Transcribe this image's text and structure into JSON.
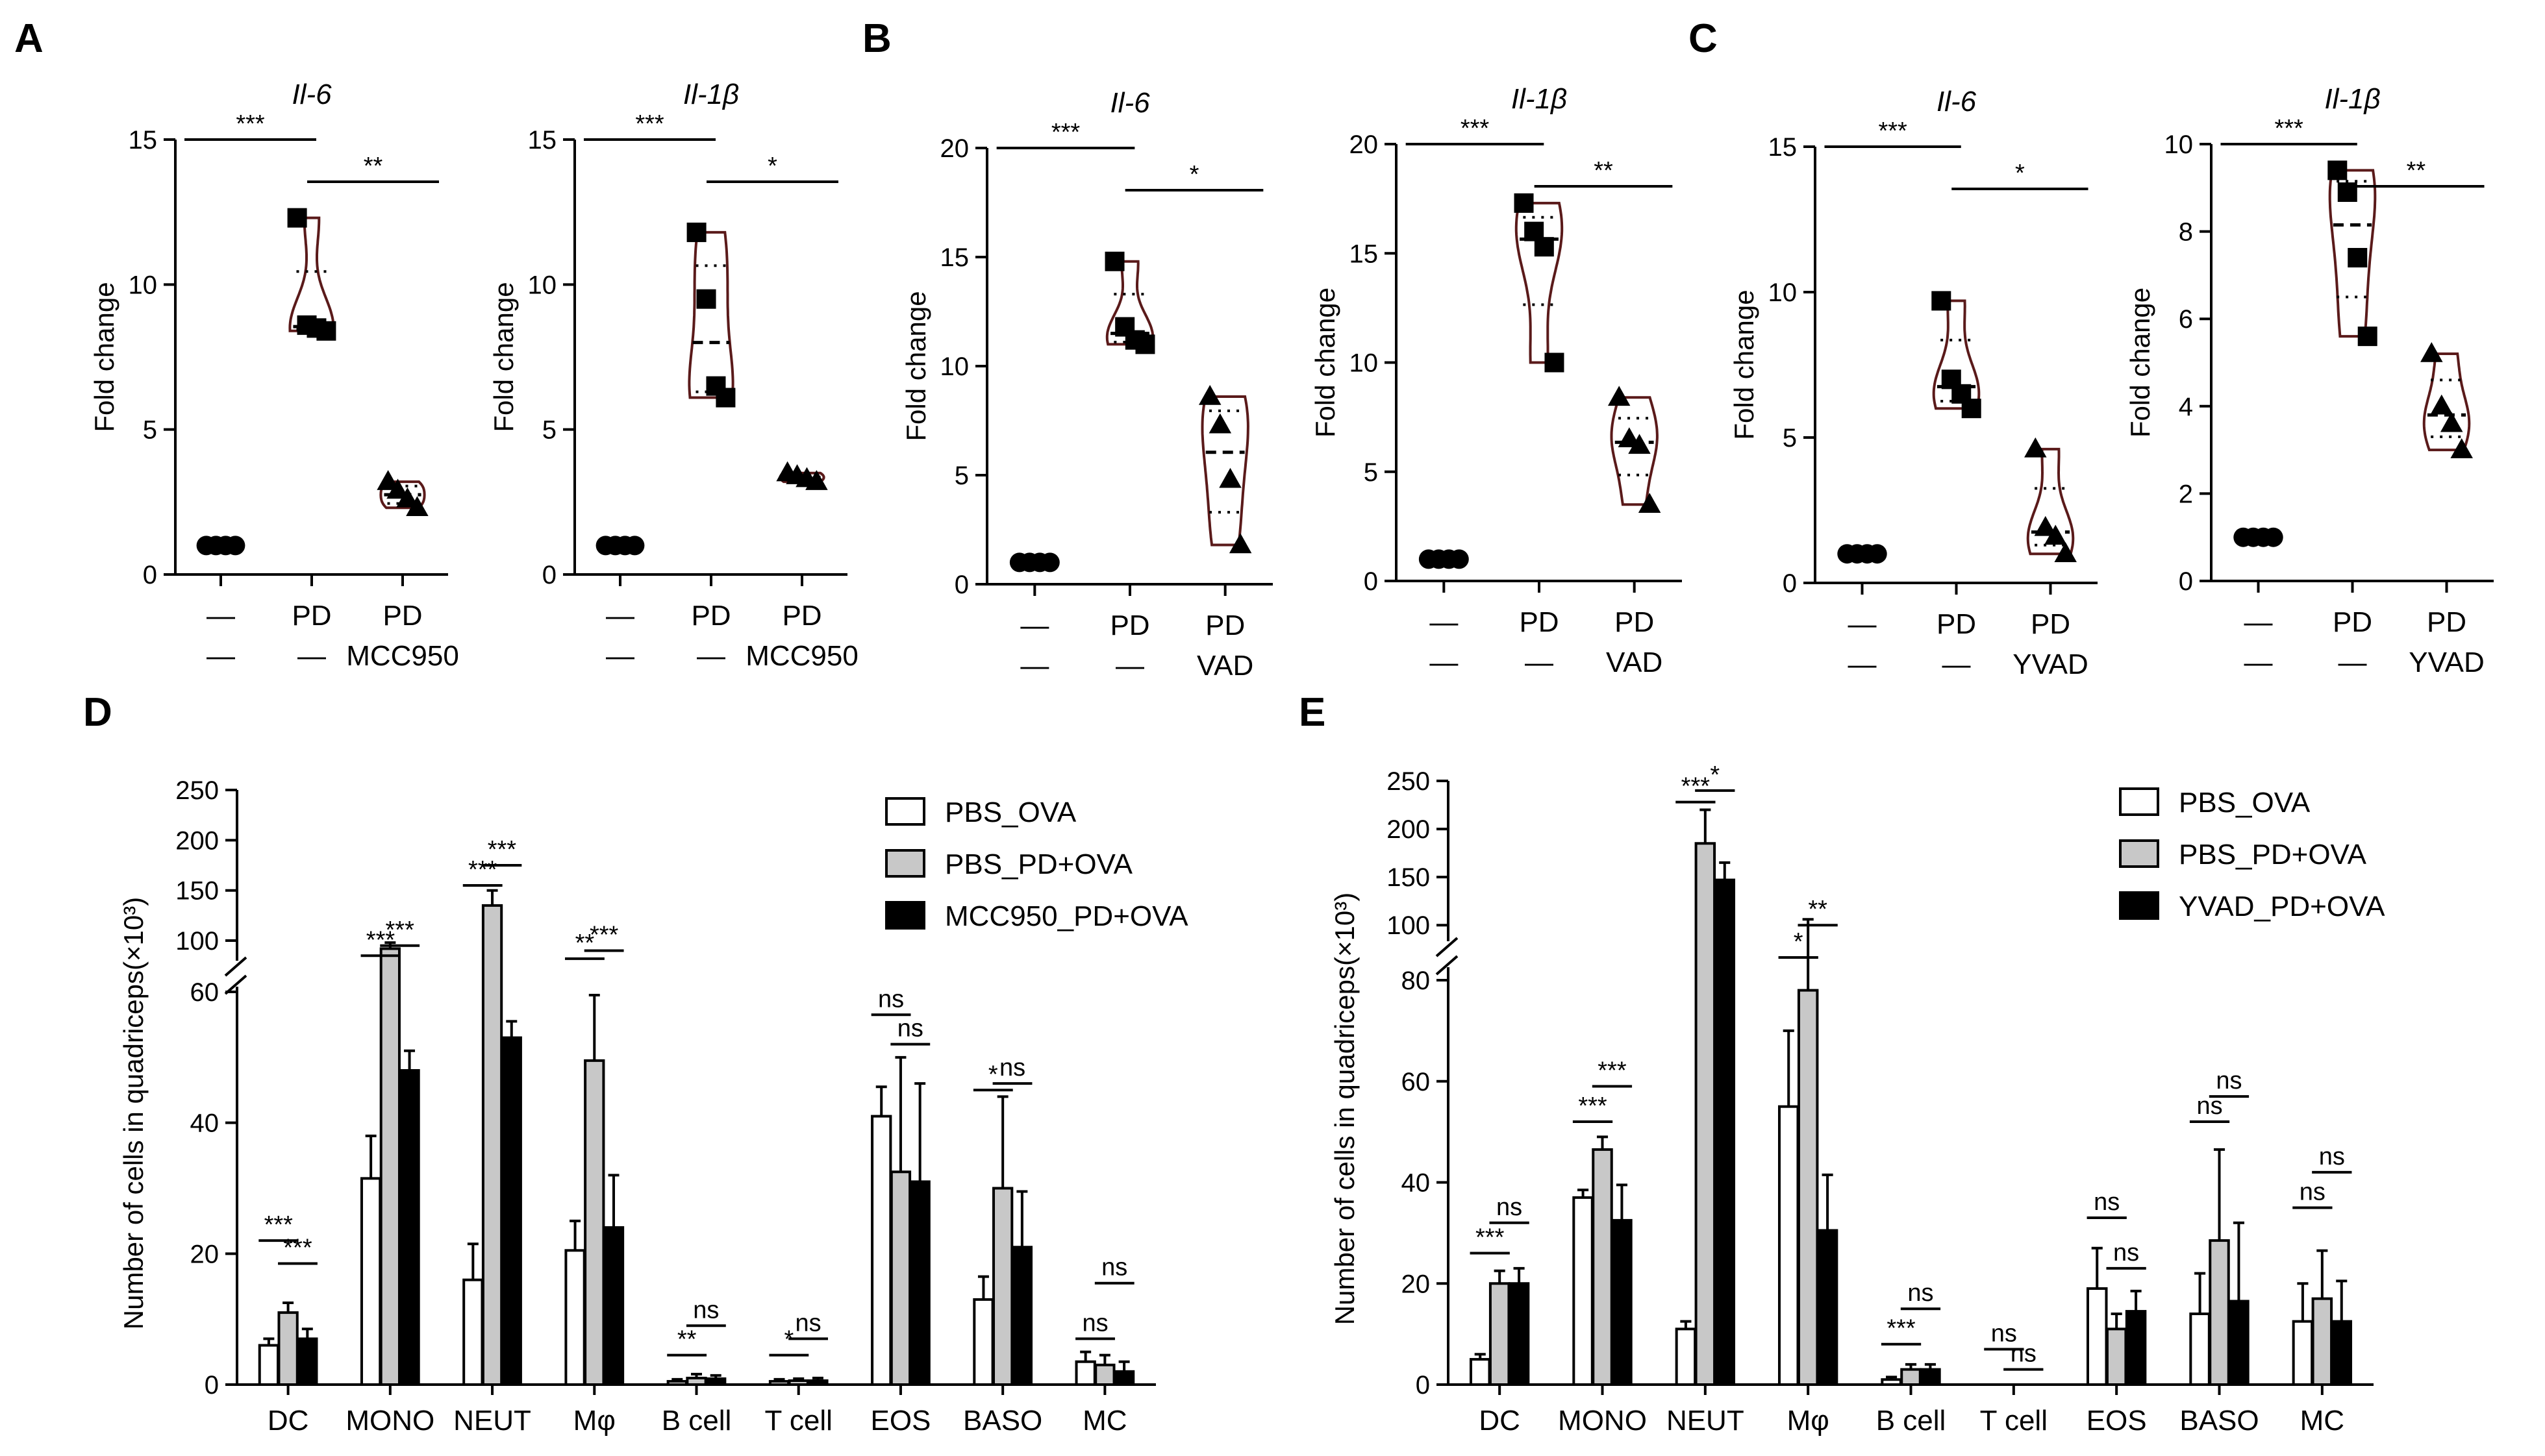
{
  "chart_data": [
    {
      "id": "A1",
      "panel": "A",
      "type": "violin",
      "title": "Il-6",
      "ylabel": "Fold change",
      "ylim": [
        0,
        15
      ],
      "ticks": [
        0,
        5,
        10,
        15
      ],
      "conditions": [
        [
          "—",
          "—"
        ],
        [
          "PD",
          "—"
        ],
        [
          "PD",
          "MCC950"
        ]
      ],
      "groups": [
        {
          "marker": "circle",
          "points": [
            1,
            1,
            1,
            1
          ]
        },
        {
          "marker": "square",
          "points": [
            12.3,
            8.6,
            8.5,
            8.4
          ]
        },
        {
          "marker": "triangle",
          "points": [
            3.2,
            2.9,
            2.6,
            2.3
          ]
        }
      ],
      "significance": [
        {
          "from": 0,
          "to": 1,
          "label": "***"
        },
        {
          "from": 1,
          "to": 2,
          "label": "**"
        }
      ]
    },
    {
      "id": "A2",
      "panel": "",
      "type": "violin",
      "title": "Il-1β",
      "ylabel": "Fold change",
      "ylim": [
        0,
        15
      ],
      "ticks": [
        0,
        5,
        10,
        15
      ],
      "conditions": [
        [
          "—",
          "—"
        ],
        [
          "PD",
          "—"
        ],
        [
          "PD",
          "MCC950"
        ]
      ],
      "groups": [
        {
          "marker": "circle",
          "points": [
            1,
            1,
            1,
            1
          ]
        },
        {
          "marker": "square",
          "points": [
            11.8,
            9.5,
            6.5,
            6.1
          ]
        },
        {
          "marker": "triangle",
          "points": [
            3.5,
            3.4,
            3.3,
            3.2
          ]
        }
      ],
      "significance": [
        {
          "from": 0,
          "to": 1,
          "label": "***"
        },
        {
          "from": 1,
          "to": 2,
          "label": "*"
        }
      ]
    },
    {
      "id": "B1",
      "panel": "B",
      "type": "violin",
      "title": "Il-6",
      "ylabel": "Fold change",
      "ylim": [
        0,
        20
      ],
      "ticks": [
        0,
        5,
        10,
        15,
        20
      ],
      "conditions": [
        [
          "—",
          "—"
        ],
        [
          "PD",
          "—"
        ],
        [
          "PD",
          "VAD"
        ]
      ],
      "groups": [
        {
          "marker": "circle",
          "points": [
            1,
            1,
            1,
            1
          ]
        },
        {
          "marker": "square",
          "points": [
            14.8,
            11.8,
            11.2,
            11.0
          ]
        },
        {
          "marker": "triangle",
          "points": [
            8.6,
            7.3,
            4.8,
            1.8
          ]
        }
      ],
      "significance": [
        {
          "from": 0,
          "to": 1,
          "label": "***"
        },
        {
          "from": 1,
          "to": 2,
          "label": "*"
        }
      ]
    },
    {
      "id": "B2",
      "panel": "",
      "type": "violin",
      "title": "Il-1β",
      "ylabel": "Fold change",
      "ylim": [
        0,
        20
      ],
      "ticks": [
        0,
        5,
        10,
        15,
        20
      ],
      "conditions": [
        [
          "—",
          "—"
        ],
        [
          "PD",
          "—"
        ],
        [
          "PD",
          "VAD"
        ]
      ],
      "groups": [
        {
          "marker": "circle",
          "points": [
            1,
            1,
            1,
            1
          ]
        },
        {
          "marker": "square",
          "points": [
            17.3,
            16.0,
            15.3,
            10.0
          ]
        },
        {
          "marker": "triangle",
          "points": [
            8.4,
            6.5,
            6.2,
            3.5
          ]
        }
      ],
      "significance": [
        {
          "from": 0,
          "to": 1,
          "label": "***"
        },
        {
          "from": 1,
          "to": 2,
          "label": "**"
        }
      ]
    },
    {
      "id": "C1",
      "panel": "C",
      "type": "violin",
      "title": "Il-6",
      "ylabel": "Fold change",
      "ylim": [
        0,
        15
      ],
      "ticks": [
        0,
        5,
        10,
        15
      ],
      "conditions": [
        [
          "—",
          "—"
        ],
        [
          "PD",
          "—"
        ],
        [
          "PD",
          "YVAD"
        ]
      ],
      "groups": [
        {
          "marker": "circle",
          "points": [
            1,
            1,
            1,
            1
          ]
        },
        {
          "marker": "square",
          "points": [
            9.7,
            7.0,
            6.5,
            6.0
          ]
        },
        {
          "marker": "triangle",
          "points": [
            4.6,
            1.9,
            1.6,
            1.0
          ]
        }
      ],
      "significance": [
        {
          "from": 0,
          "to": 1,
          "label": "***"
        },
        {
          "from": 1,
          "to": 2,
          "label": "*"
        }
      ]
    },
    {
      "id": "C2",
      "panel": "",
      "type": "violin",
      "title": "Il-1β",
      "ylabel": "Fold change",
      "ylim": [
        0,
        10
      ],
      "ticks": [
        0,
        2,
        4,
        6,
        8,
        10
      ],
      "conditions": [
        [
          "—",
          "—"
        ],
        [
          "PD",
          "—"
        ],
        [
          "PD",
          "YVAD"
        ]
      ],
      "groups": [
        {
          "marker": "circle",
          "points": [
            1,
            1,
            1,
            1
          ]
        },
        {
          "marker": "square",
          "points": [
            9.4,
            8.9,
            7.4,
            5.6
          ]
        },
        {
          "marker": "triangle",
          "points": [
            5.2,
            4.0,
            3.6,
            3.0
          ]
        }
      ],
      "significance": [
        {
          "from": 0,
          "to": 1,
          "label": "***"
        },
        {
          "from": 1,
          "to": 2,
          "label": "**"
        }
      ]
    },
    {
      "id": "D",
      "panel": "D",
      "type": "bar",
      "ylabel": "Number of cells in quadriceps(×10³)",
      "lower_range": [
        0,
        60
      ],
      "lower_ticks": [
        0,
        20,
        40,
        60
      ],
      "upper_range": [
        80,
        250
      ],
      "upper_ticks": [
        100,
        150,
        200,
        250
      ],
      "categories": [
        "DC",
        "MONO",
        "NEUT",
        "Mφ",
        "B cell",
        "T cell",
        "EOS",
        "BASO",
        "MC"
      ],
      "series": [
        {
          "name": "PBS_OVA",
          "color": "#ffffff",
          "values": [
            6,
            31.5,
            16,
            20.5,
            0.5,
            0.5,
            41,
            13,
            3.5
          ],
          "errors": [
            1,
            6.5,
            5.5,
            4.5,
            0.3,
            0.3,
            4.5,
            3.5,
            1.5
          ]
        },
        {
          "name": "PBS_PD+OVA",
          "color": "#c8c8c8",
          "values": [
            11,
            92,
            135,
            49.5,
            1,
            0.6,
            32.5,
            30,
            3
          ],
          "errors": [
            1.5,
            6,
            15,
            10,
            0.6,
            0.3,
            17.5,
            14,
            1.5
          ]
        },
        {
          "name": "MCC950_PD+OVA",
          "color": "#000000",
          "values": [
            7,
            48,
            53,
            24,
            0.9,
            0.6,
            31,
            21,
            2
          ],
          "errors": [
            1.5,
            3,
            2.5,
            8,
            0.5,
            0.4,
            15,
            8.5,
            1.5
          ]
        }
      ],
      "significance": [
        {
          "cat": 0,
          "from": 0,
          "to": 1,
          "label": "***",
          "y": 22
        },
        {
          "cat": 0,
          "from": 1,
          "to": 2,
          "label": "***",
          "y": 18.5
        },
        {
          "cat": 1,
          "from": 0,
          "to": 1,
          "label": "***",
          "y": 85
        },
        {
          "cat": 1,
          "from": 1,
          "to": 2,
          "label": "***",
          "y": 95
        },
        {
          "cat": 2,
          "from": 0,
          "to": 1,
          "label": "***",
          "y": 155
        },
        {
          "cat": 2,
          "from": 1,
          "to": 2,
          "label": "***",
          "y": 175
        },
        {
          "cat": 3,
          "from": 0,
          "to": 1,
          "label": "**",
          "y": 82
        },
        {
          "cat": 3,
          "from": 1,
          "to": 2,
          "label": "***",
          "y": 90
        },
        {
          "cat": 4,
          "from": 0,
          "to": 1,
          "label": "**",
          "y": 4.5
        },
        {
          "cat": 4,
          "from": 1,
          "to": 2,
          "label": "ns",
          "y": 9
        },
        {
          "cat": 5,
          "from": 0,
          "to": 1,
          "label": "*",
          "y": 4.5
        },
        {
          "cat": 5,
          "from": 1,
          "to": 2,
          "label": "ns",
          "y": 7
        },
        {
          "cat": 6,
          "from": 0,
          "to": 1,
          "label": "ns",
          "y": 56.5
        },
        {
          "cat": 6,
          "from": 1,
          "to": 2,
          "label": "ns",
          "y": 52
        },
        {
          "cat": 7,
          "from": 0,
          "to": 1,
          "label": "*",
          "y": 45
        },
        {
          "cat": 7,
          "from": 1,
          "to": 2,
          "label": "ns",
          "y": 46
        },
        {
          "cat": 8,
          "from": 0,
          "to": 1,
          "label": "ns",
          "y": 7
        },
        {
          "cat": 8,
          "from": 1,
          "to": 2,
          "label": "ns",
          "y": 15.5
        }
      ]
    },
    {
      "id": "E",
      "panel": "E",
      "type": "bar",
      "ylabel": "Number of cells in quadriceps(×10³)",
      "lower_range": [
        0,
        80
      ],
      "lower_ticks": [
        0,
        20,
        40,
        60,
        80
      ],
      "upper_range": [
        90,
        250
      ],
      "upper_ticks": [
        100,
        150,
        200,
        250
      ],
      "categories": [
        "DC",
        "MONO",
        "NEUT",
        "Mφ",
        "B cell",
        "T cell",
        "EOS",
        "BASO",
        "MC"
      ],
      "series": [
        {
          "name": "PBS_OVA",
          "color": "#ffffff",
          "values": [
            5,
            37,
            11,
            55,
            1,
            0,
            19,
            14,
            12.5
          ],
          "errors": [
            1,
            1.5,
            1.5,
            15,
            0.5,
            0,
            8,
            8,
            7.5
          ]
        },
        {
          "name": "PBS_PD+OVA",
          "color": "#c8c8c8",
          "values": [
            20,
            46.5,
            185,
            78,
            3,
            0,
            11,
            28.5,
            17
          ],
          "errors": [
            2.5,
            2.5,
            35,
            28,
            1,
            0,
            3,
            18,
            9.5
          ]
        },
        {
          "name": "YVAD_PD+OVA",
          "color": "#000000",
          "values": [
            20,
            32.5,
            147,
            30.5,
            3,
            0,
            14.5,
            16.5,
            12.5
          ],
          "errors": [
            3,
            7,
            18,
            11,
            1,
            0,
            4,
            15.5,
            8
          ]
        }
      ],
      "significance": [
        {
          "cat": 0,
          "from": 0,
          "to": 1,
          "label": "***",
          "y": 26
        },
        {
          "cat": 0,
          "from": 1,
          "to": 2,
          "label": "ns",
          "y": 32
        },
        {
          "cat": 1,
          "from": 0,
          "to": 1,
          "label": "***",
          "y": 52
        },
        {
          "cat": 1,
          "from": 1,
          "to": 2,
          "label": "***",
          "y": 59
        },
        {
          "cat": 2,
          "from": 0,
          "to": 1,
          "label": "***",
          "y": 228
        },
        {
          "cat": 2,
          "from": 1,
          "to": 2,
          "label": "*",
          "y": 240
        },
        {
          "cat": 3,
          "from": 0,
          "to": 1,
          "label": "*",
          "y": 80.3
        },
        {
          "cat": 3,
          "from": 1,
          "to": 2,
          "label": "**",
          "y": 100
        },
        {
          "cat": 4,
          "from": 0,
          "to": 1,
          "label": "***",
          "y": 8
        },
        {
          "cat": 4,
          "from": 1,
          "to": 2,
          "label": "ns",
          "y": 15
        },
        {
          "cat": 5,
          "from": 0,
          "to": 1,
          "label": "ns",
          "y": 7
        },
        {
          "cat": 5,
          "from": 1,
          "to": 2,
          "label": "ns",
          "y": 3
        },
        {
          "cat": 6,
          "from": 0,
          "to": 1,
          "label": "ns",
          "y": 33
        },
        {
          "cat": 6,
          "from": 1,
          "to": 2,
          "label": "ns",
          "y": 23
        },
        {
          "cat": 7,
          "from": 0,
          "to": 1,
          "label": "ns",
          "y": 52
        },
        {
          "cat": 7,
          "from": 1,
          "to": 2,
          "label": "ns",
          "y": 57
        },
        {
          "cat": 8,
          "from": 0,
          "to": 1,
          "label": "ns",
          "y": 35
        },
        {
          "cat": 8,
          "from": 1,
          "to": 2,
          "label": "ns",
          "y": 42
        }
      ]
    }
  ]
}
